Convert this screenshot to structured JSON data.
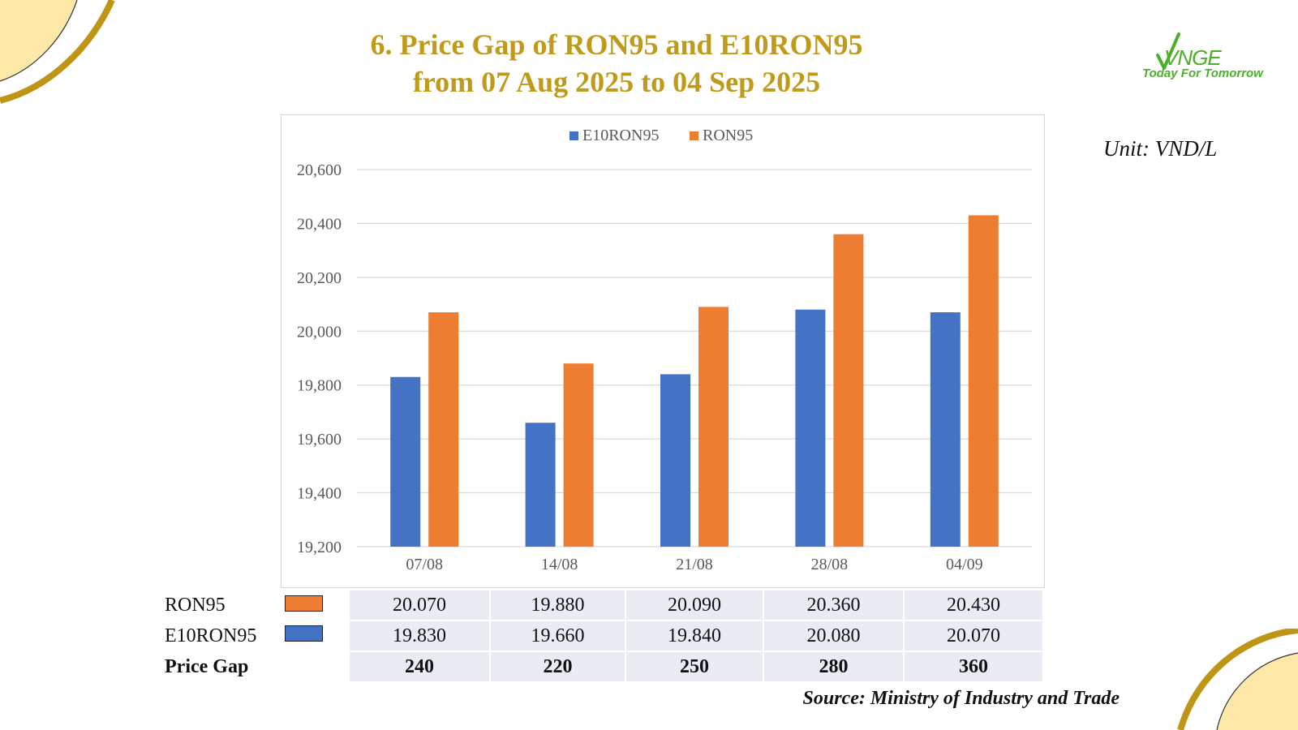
{
  "slide": {
    "title_line1": "6. Price Gap of RON95 and E10RON95",
    "title_line2": "from 07 Aug 2025 to 04 Sep 2025",
    "unit": "Unit: VND/L",
    "source": "Source: Ministry of Industry and Trade",
    "logo_text": "VNGE",
    "logo_tagline": "Today For Tomorrow"
  },
  "colors": {
    "title": "#c09a19",
    "e10ron95": "#4472c4",
    "ron95": "#ed7d31",
    "corner_fill": "#fde8a8",
    "corner_line": "#bf9516",
    "logo_green": "#4caf2a"
  },
  "chart_data": {
    "type": "bar",
    "categories": [
      "07/08",
      "14/08",
      "21/08",
      "28/08",
      "04/09"
    ],
    "series": [
      {
        "name": "E10RON95",
        "values": [
          19830,
          19660,
          19840,
          20080,
          20070
        ]
      },
      {
        "name": "RON95",
        "values": [
          20070,
          19880,
          20090,
          20360,
          20430
        ]
      }
    ],
    "ylim": [
      19200,
      20600
    ],
    "yticks": [
      19200,
      19400,
      19600,
      19800,
      20000,
      20200,
      20400,
      20600
    ],
    "ytick_labels": [
      "19,200",
      "19,400",
      "19,600",
      "19,800",
      "20,000",
      "20,200",
      "20,400",
      "20,600"
    ],
    "legend_position": "top-center",
    "grid": true
  },
  "table": {
    "rows": [
      {
        "label": "RON95",
        "swatch": "ron95",
        "values": [
          "20.070",
          "19.880",
          "20.090",
          "20.360",
          "20.430"
        ]
      },
      {
        "label": "E10RON95",
        "swatch": "e10ron95",
        "values": [
          "19.830",
          "19.660",
          "19.840",
          "20.080",
          "20.070"
        ]
      },
      {
        "label": "Price Gap",
        "values": [
          "240",
          "220",
          "250",
          "280",
          "360"
        ]
      }
    ]
  }
}
